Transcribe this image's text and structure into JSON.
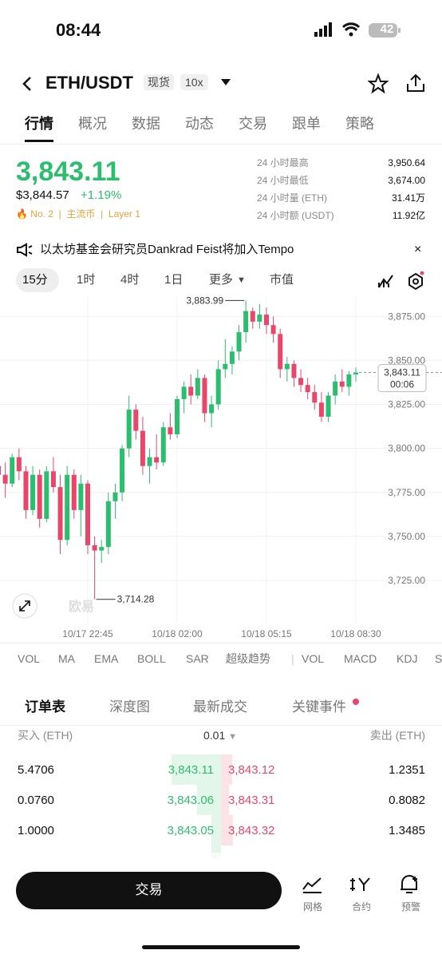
{
  "status": {
    "time": "08:44",
    "battery": "42"
  },
  "header": {
    "pair": "ETH/USDT",
    "tag": "现货",
    "leverage": "10x"
  },
  "tabs": [
    "行情",
    "概况",
    "数据",
    "动态",
    "交易",
    "跟单",
    "策略"
  ],
  "price": {
    "last": "3,843.11",
    "usd": "$3,844.57",
    "change": "+1.19%",
    "rank": "No. 2",
    "tags": [
      "主流币",
      "Layer 1"
    ]
  },
  "stats": [
    [
      "24 小时最高",
      "3,950.64"
    ],
    [
      "24 小时最低",
      "3,674.00"
    ],
    [
      "24 小时量 (ETH)",
      "31.41万"
    ],
    [
      "24 小时额 (USDT)",
      "11.92亿"
    ]
  ],
  "news": "以太坊基金会研究员Dankrad Feist将加入Tempo",
  "intervals": [
    "15分",
    "1时",
    "4时",
    "1日",
    "更多",
    "市值"
  ],
  "chart_data": {
    "type": "candlestick",
    "open": [
      3790,
      3785,
      3780,
      3795,
      3787,
      3765,
      3785,
      3760,
      3787,
      3778,
      3748,
      3785,
      3765,
      3780,
      3745,
      3742,
      3744,
      3770,
      3775,
      3800,
      3822,
      3810,
      3790,
      3795,
      3792,
      3812,
      3808,
      3828,
      3835,
      3830,
      3840,
      3820,
      3825,
      3845,
      3848,
      3855,
      3866,
      3878,
      3872,
      3876,
      3870,
      3865,
      3845,
      3848,
      3840,
      3836,
      3832,
      3826,
      3818,
      3830,
      3838,
      3835,
      3842
    ],
    "high": [
      3798,
      3792,
      3797,
      3800,
      3790,
      3790,
      3788,
      3790,
      3795,
      3785,
      3790,
      3788,
      3785,
      3782,
      3750,
      3748,
      3775,
      3780,
      3802,
      3830,
      3825,
      3818,
      3800,
      3808,
      3815,
      3820,
      3830,
      3838,
      3842,
      3845,
      3842,
      3830,
      3850,
      3862,
      3858,
      3870,
      3883.99,
      3880,
      3882,
      3880,
      3875,
      3868,
      3852,
      3850,
      3845,
      3840,
      3836,
      3832,
      3832,
      3842,
      3845,
      3844,
      3846
    ],
    "low": [
      3778,
      3772,
      3778,
      3782,
      3760,
      3762,
      3755,
      3758,
      3775,
      3740,
      3745,
      3760,
      3750,
      3740,
      3714.28,
      3735,
      3740,
      3760,
      3770,
      3795,
      3805,
      3785,
      3780,
      3788,
      3790,
      3805,
      3806,
      3820,
      3825,
      3828,
      3815,
      3812,
      3822,
      3840,
      3842,
      3850,
      3860,
      3868,
      3868,
      3865,
      3860,
      3840,
      3838,
      3835,
      3832,
      3828,
      3822,
      3815,
      3815,
      3825,
      3832,
      3830,
      3838
    ],
    "close": [
      3785,
      3780,
      3795,
      3787,
      3765,
      3785,
      3760,
      3787,
      3778,
      3748,
      3785,
      3765,
      3780,
      3745,
      3742,
      3744,
      3770,
      3775,
      3800,
      3822,
      3810,
      3790,
      3795,
      3792,
      3812,
      3808,
      3828,
      3835,
      3830,
      3840,
      3820,
      3825,
      3845,
      3848,
      3855,
      3866,
      3878,
      3872,
      3876,
      3870,
      3865,
      3845,
      3848,
      3840,
      3836,
      3832,
      3826,
      3818,
      3830,
      3838,
      3835,
      3842,
      3843.11
    ],
    "up_color": "#2dbd6e",
    "down_color": "#e8476a",
    "ylim": [
      3701,
      3886
    ],
    "yticks": [
      {
        "value": 3875,
        "label": "3,875.00"
      },
      {
        "value": 3850,
        "label": "3,850.00"
      },
      {
        "value": 3825,
        "label": "3,825.00"
      },
      {
        "value": 3800,
        "label": "3,800.00"
      },
      {
        "value": 3775,
        "label": "3,775.00"
      },
      {
        "value": 3750,
        "label": "3,750.00"
      },
      {
        "value": 3725,
        "label": "3,725.00"
      }
    ],
    "xlabels": [
      "10/17 22:45",
      "10/18 02:00",
      "10/18 05:15",
      "10/18 08:30"
    ],
    "high_label": "3,883.99",
    "low_label": "3,714.28",
    "current_label": "3,843.11",
    "countdown": "00:06",
    "watermark": "欧易",
    "grid": true
  },
  "indicators": [
    "VOL",
    "MA",
    "EMA",
    "BOLL",
    "SAR",
    "超级趋势",
    "VOL",
    "MACD",
    "KDJ",
    "S"
  ],
  "book": {
    "tabs": [
      "订单表",
      "深度图",
      "最新成交",
      "关键事件"
    ],
    "buy_header": "买入 (ETH)",
    "step": "0.01",
    "sell_header": "卖出 (ETH)",
    "rows": [
      [
        "5.4706",
        "3,843.11",
        "3,843.12",
        "1.2351"
      ],
      [
        "0.0760",
        "3,843.06",
        "3,843.31",
        "0.8082"
      ],
      [
        "1.0000",
        "3,843.05",
        "3,843.32",
        "1.3485"
      ]
    ]
  },
  "bottom": {
    "trade": "交易",
    "actions": [
      "网格",
      "合约",
      "预警"
    ]
  }
}
